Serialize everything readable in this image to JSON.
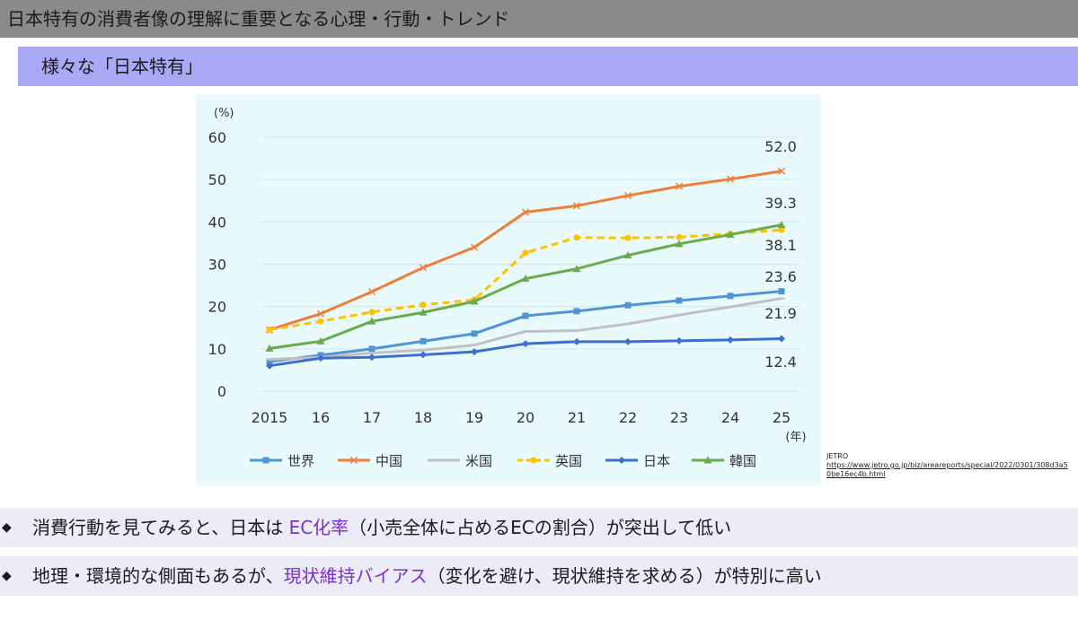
{
  "header": {
    "title": "日本特有の消費者像の理解に重要となる心理・行動・トレンド",
    "subtitle": "様々な「日本特有」"
  },
  "source": {
    "label": "JETRO",
    "url": "https://www.jetro.go.jp/biz/areareports/special/2022/0301/308d3a50be16ec4b.html"
  },
  "bullets": [
    {
      "marker": "◆",
      "before": "消費行動を見てみると、日本は ",
      "highlight": "EC化率",
      "after": "（小売全体に占めるECの割合）が突出して低い"
    },
    {
      "marker": "◆",
      "before": "地理・環境的な側面もあるが、",
      "highlight": "現状維持バイアス",
      "after": "（変化を避け、現状維持を求める）が特別に高い"
    }
  ],
  "colors": {
    "top_bar": "#8a8a8a",
    "subheader": "#a9a9f5",
    "chart_bg": "#e9fafc",
    "highlight": "#7a2fd3"
  },
  "chart_data": {
    "type": "line",
    "ylabel": "(%)",
    "xlabel": "(年)",
    "ylim": [
      0,
      60
    ],
    "yticks": [
      0,
      10,
      20,
      30,
      40,
      50,
      60
    ],
    "categories": [
      "2015",
      "16",
      "17",
      "18",
      "19",
      "20",
      "21",
      "22",
      "23",
      "24",
      "25"
    ],
    "grid": true,
    "legend_position": "bottom",
    "series": [
      {
        "name": "世界",
        "color": "#4f94d4",
        "dash": false,
        "marker": "square",
        "values": [
          7.0,
          8.5,
          10.0,
          11.8,
          13.6,
          17.8,
          18.9,
          20.3,
          21.4,
          22.5,
          23.6
        ],
        "end_label": "23.6"
      },
      {
        "name": "中国",
        "color": "#ee7e3a",
        "dash": false,
        "marker": "x",
        "values": [
          14.5,
          18.3,
          23.5,
          29.2,
          34.0,
          42.3,
          43.8,
          46.2,
          48.4,
          50.1,
          52.0
        ],
        "end_label": "52.0"
      },
      {
        "name": "米国",
        "color": "#c0c0c0",
        "dash": false,
        "marker": "dash",
        "values": [
          7.5,
          8.0,
          9.0,
          9.7,
          10.9,
          14.1,
          14.3,
          15.9,
          18.0,
          19.9,
          21.9
        ],
        "end_label": "21.9"
      },
      {
        "name": "英国",
        "color": "#ffc000",
        "dash": true,
        "marker": "circle",
        "values": [
          14.5,
          16.5,
          18.7,
          20.4,
          21.6,
          32.7,
          36.3,
          36.2,
          36.4,
          37.2,
          38.1
        ],
        "end_label": "38.1"
      },
      {
        "name": "日本",
        "color": "#3c6fd0",
        "dash": false,
        "marker": "diamond",
        "values": [
          6.0,
          7.8,
          8.0,
          8.6,
          9.3,
          11.2,
          11.7,
          11.7,
          11.9,
          12.1,
          12.4
        ],
        "end_label": "12.4"
      },
      {
        "name": "韓国",
        "color": "#6aab4c",
        "dash": false,
        "marker": "triangle",
        "values": [
          10.1,
          11.8,
          16.5,
          18.6,
          21.2,
          26.6,
          28.9,
          32.1,
          34.8,
          37.0,
          39.3
        ],
        "end_label": "39.3"
      }
    ]
  }
}
